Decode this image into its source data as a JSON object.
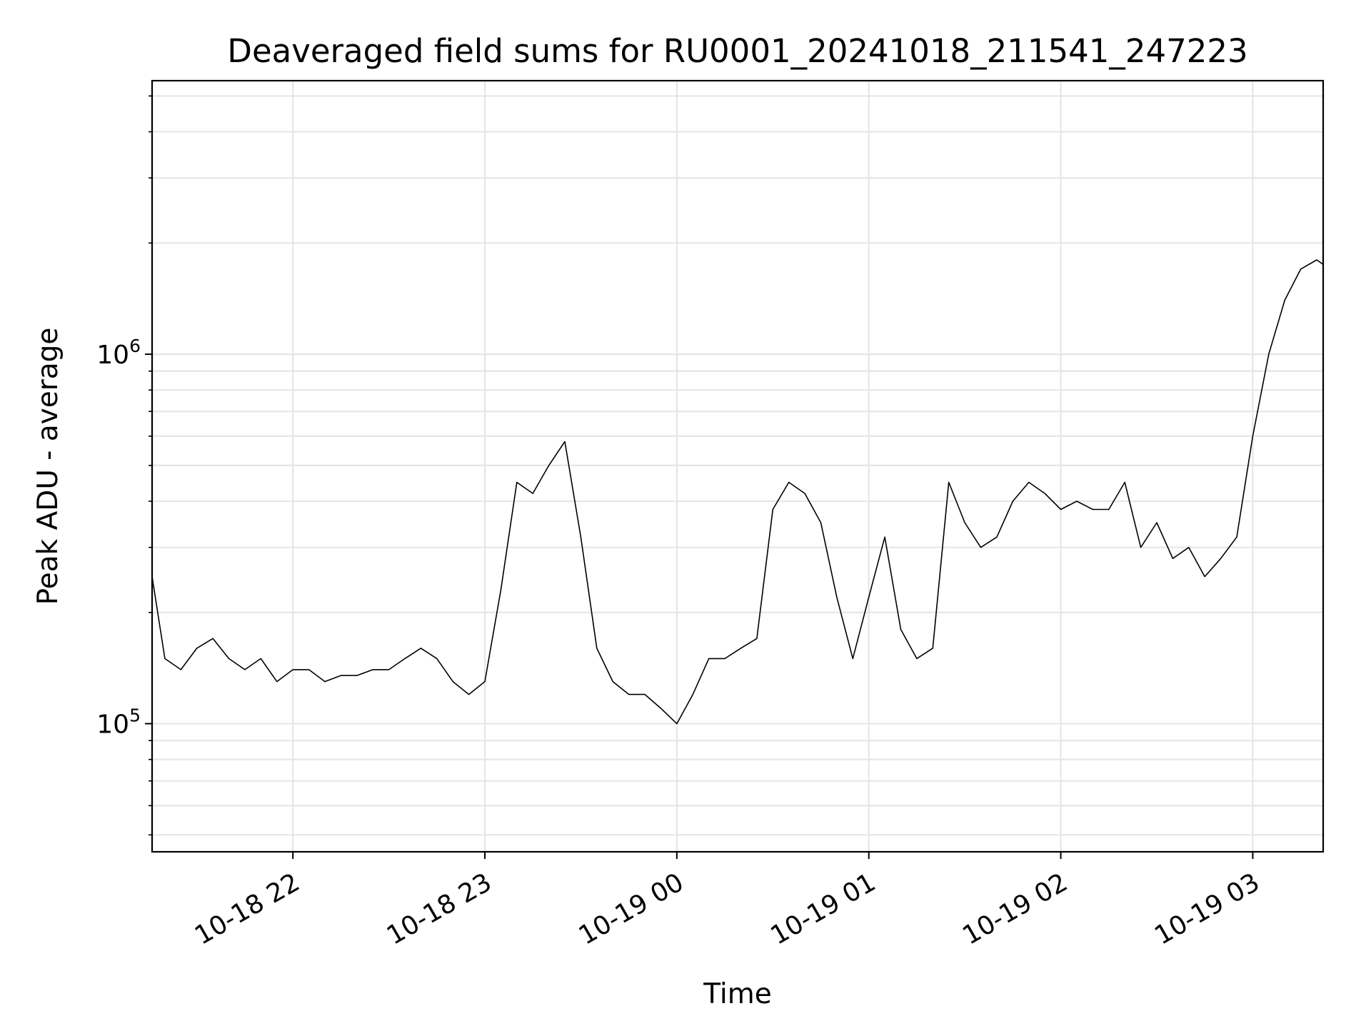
{
  "chart_data": {
    "type": "line",
    "title": "Deaveraged field sums for RU0001_20241018_211541_247223",
    "xlabel": "Time",
    "ylabel": "Peak ADU - average",
    "yscale": "log",
    "grid": true,
    "line_color": "#000000",
    "grid_color": "#e6e6e6",
    "x_range": [
      "2024-10-18 21:16",
      "2024-10-19 03:22"
    ],
    "ylim": [
      45000,
      5500000
    ],
    "x_ticks": [
      {
        "label": "10-18 22",
        "value": "2024-10-18 22:00"
      },
      {
        "label": "10-18 23",
        "value": "2024-10-18 23:00"
      },
      {
        "label": "10-19 00",
        "value": "2024-10-19 00:00"
      },
      {
        "label": "10-19 01",
        "value": "2024-10-19 01:00"
      },
      {
        "label": "10-19 02",
        "value": "2024-10-19 02:00"
      },
      {
        "label": "10-19 03",
        "value": "2024-10-19 03:00"
      }
    ],
    "y_ticks": [
      {
        "base": "10",
        "exp": "5",
        "value": 100000
      },
      {
        "base": "10",
        "exp": "6",
        "value": 1000000
      }
    ],
    "series": [
      {
        "time": [
          "2024-10-18 21:16",
          "2024-10-18 21:20",
          "2024-10-18 21:25",
          "2024-10-18 21:30",
          "2024-10-18 21:35",
          "2024-10-18 21:40",
          "2024-10-18 21:45",
          "2024-10-18 21:50",
          "2024-10-18 21:55",
          "2024-10-18 22:00",
          "2024-10-18 22:05",
          "2024-10-18 22:10",
          "2024-10-18 22:15",
          "2024-10-18 22:20",
          "2024-10-18 22:25",
          "2024-10-18 22:30",
          "2024-10-18 22:35",
          "2024-10-18 22:40",
          "2024-10-18 22:45",
          "2024-10-18 22:50",
          "2024-10-18 22:55",
          "2024-10-18 23:00",
          "2024-10-18 23:05",
          "2024-10-18 23:10",
          "2024-10-18 23:15",
          "2024-10-18 23:20",
          "2024-10-18 23:25",
          "2024-10-18 23:30",
          "2024-10-18 23:35",
          "2024-10-18 23:40",
          "2024-10-18 23:45",
          "2024-10-18 23:50",
          "2024-10-18 23:55",
          "2024-10-19 00:00",
          "2024-10-19 00:05",
          "2024-10-19 00:10",
          "2024-10-19 00:15",
          "2024-10-19 00:20",
          "2024-10-19 00:25",
          "2024-10-19 00:30",
          "2024-10-19 00:35",
          "2024-10-19 00:40",
          "2024-10-19 00:45",
          "2024-10-19 00:50",
          "2024-10-19 00:55",
          "2024-10-19 01:00",
          "2024-10-19 01:05",
          "2024-10-19 01:10",
          "2024-10-19 01:15",
          "2024-10-19 01:20",
          "2024-10-19 01:25",
          "2024-10-19 01:30",
          "2024-10-19 01:35",
          "2024-10-19 01:40",
          "2024-10-19 01:45",
          "2024-10-19 01:50",
          "2024-10-19 01:55",
          "2024-10-19 02:00",
          "2024-10-19 02:05",
          "2024-10-19 02:10",
          "2024-10-19 02:15",
          "2024-10-19 02:20",
          "2024-10-19 02:25",
          "2024-10-19 02:30",
          "2024-10-19 02:35",
          "2024-10-19 02:40",
          "2024-10-19 02:45",
          "2024-10-19 02:50",
          "2024-10-19 02:55",
          "2024-10-19 03:00",
          "2024-10-19 03:05",
          "2024-10-19 03:10",
          "2024-10-19 03:15",
          "2024-10-19 03:20",
          "2024-10-19 03:22"
        ],
        "values": [
          250000,
          150000,
          140000,
          160000,
          170000,
          150000,
          140000,
          150000,
          130000,
          140000,
          140000,
          130000,
          135000,
          135000,
          140000,
          140000,
          150000,
          160000,
          150000,
          130000,
          120000,
          130000,
          230000,
          450000,
          420000,
          500000,
          580000,
          320000,
          160000,
          130000,
          120000,
          120000,
          110000,
          100000,
          120000,
          150000,
          150000,
          160000,
          170000,
          380000,
          450000,
          420000,
          350000,
          220000,
          150000,
          220000,
          320000,
          180000,
          150000,
          160000,
          450000,
          350000,
          300000,
          320000,
          400000,
          450000,
          420000,
          380000,
          400000,
          380000,
          380000,
          450000,
          300000,
          350000,
          280000,
          300000,
          250000,
          280000,
          320000,
          600000,
          1000000,
          1400000,
          1700000,
          1800000,
          1750000
        ]
      }
    ]
  }
}
